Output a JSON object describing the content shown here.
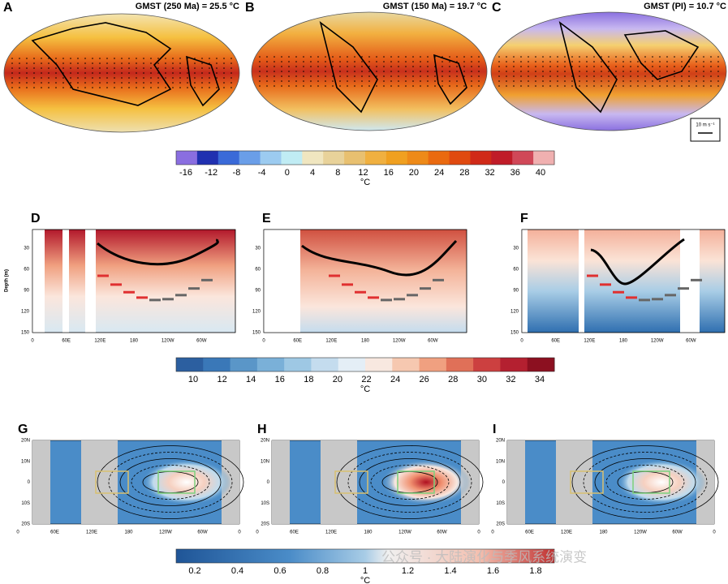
{
  "map_row": {
    "panels": [
      {
        "letter": "A",
        "title": "GMST (250 Ma) = 25.5 °C"
      },
      {
        "letter": "B",
        "title": "GMST (150 Ma) = 19.7 °C"
      },
      {
        "letter": "C",
        "title": "GMST (PI) = 10.7 °C"
      }
    ],
    "wind_scale": "10 m s⁻¹",
    "colorbar": {
      "ticks": [
        -16,
        -12,
        -8,
        -4,
        0,
        4,
        8,
        12,
        16,
        20,
        24,
        28,
        32,
        36,
        40
      ],
      "unit": "°C"
    }
  },
  "depth_row": {
    "panels": [
      {
        "letter": "D"
      },
      {
        "letter": "E"
      },
      {
        "letter": "F"
      }
    ],
    "y_label": "Depth (m)",
    "y_ticks": [
      30,
      60,
      90,
      120,
      150
    ],
    "x_ticks": [
      "0",
      "60E",
      "120E",
      "180",
      "120W",
      "60W"
    ],
    "colorbar": {
      "ticks": [
        10,
        12,
        14,
        16,
        18,
        20,
        22,
        24,
        26,
        28,
        30,
        32,
        34
      ],
      "unit": "°C"
    }
  },
  "anomaly_row": {
    "panels": [
      {
        "letter": "G"
      },
      {
        "letter": "H"
      },
      {
        "letter": "I"
      }
    ],
    "y_ticks": [
      "20N",
      "10N",
      "0",
      "10S",
      "20S"
    ],
    "x_ticks": [
      "0",
      "60E",
      "120E",
      "180",
      "120W",
      "60W",
      "0"
    ],
    "colorbar": {
      "ticks": [
        0.2,
        0.4,
        0.6,
        0.8,
        1,
        1.2,
        1.4,
        1.6,
        1.8
      ],
      "unit": "°C"
    }
  },
  "watermark": "公众号 · 大陆演化与季风系统演变"
}
